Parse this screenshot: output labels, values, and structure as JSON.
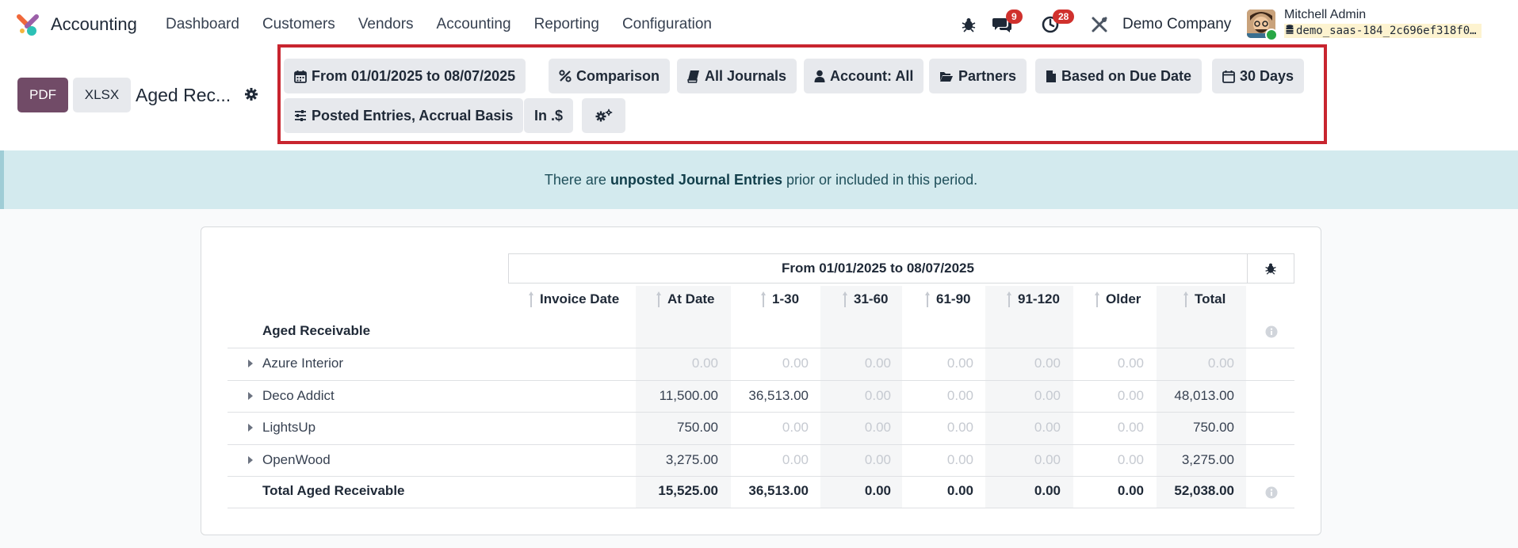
{
  "navbar": {
    "app_name": "Accounting",
    "menu": [
      "Dashboard",
      "Customers",
      "Vendors",
      "Accounting",
      "Reporting",
      "Configuration"
    ],
    "messages_count": "9",
    "activities_count": "28",
    "company": "Demo Company",
    "user_name": "Mitchell Admin",
    "database": "demo_saas-184_2c696ef318f0…"
  },
  "toolbar": {
    "pdf_label": "PDF",
    "xlsx_label": "XLSX",
    "report_title": "Aged Rec..."
  },
  "filters": {
    "date": "From 01/01/2025 to 08/07/2025",
    "comparison": "Comparison",
    "journals": "All Journals",
    "account": "Account: All",
    "partners": "Partners",
    "based_on": "Based on Due Date",
    "interval": "30 Days",
    "entries": "Posted Entries, Accrual Basis",
    "currency": "In .$"
  },
  "alert": {
    "prefix": "There are",
    "link": "unposted Journal Entries",
    "suffix": "prior or included in this period."
  },
  "report": {
    "period_header": "From 01/01/2025 to 08/07/2025",
    "columns": [
      "Invoice Date",
      "At Date",
      "1-30",
      "31-60",
      "61-90",
      "91-120",
      "Older",
      "Total"
    ],
    "section_title": "Aged Receivable",
    "rows": [
      {
        "partner": "Azure Interior",
        "at_date": "0.00",
        "d1_30": "0.00",
        "d31_60": "0.00",
        "d61_90": "0.00",
        "d91_120": "0.00",
        "older": "0.00",
        "total": "0.00"
      },
      {
        "partner": "Deco Addict",
        "at_date": "11,500.00",
        "d1_30": "36,513.00",
        "d31_60": "0.00",
        "d61_90": "0.00",
        "d91_120": "0.00",
        "older": "0.00",
        "total": "48,013.00"
      },
      {
        "partner": "LightsUp",
        "at_date": "750.00",
        "d1_30": "0.00",
        "d31_60": "0.00",
        "d61_90": "0.00",
        "d91_120": "0.00",
        "older": "0.00",
        "total": "750.00"
      },
      {
        "partner": "OpenWood",
        "at_date": "3,275.00",
        "d1_30": "0.00",
        "d31_60": "0.00",
        "d61_90": "0.00",
        "d91_120": "0.00",
        "older": "0.00",
        "total": "3,275.00"
      }
    ],
    "total_label": "Total Aged Receivable",
    "totals": {
      "at_date": "15,525.00",
      "d1_30": "36,513.00",
      "d31_60": "0.00",
      "d61_90": "0.00",
      "d91_120": "0.00",
      "older": "0.00",
      "total": "52,038.00"
    }
  },
  "colors": {
    "brand": "#714b67",
    "highlight_border": "#c8252f",
    "alert_bg": "#d3eaee"
  }
}
